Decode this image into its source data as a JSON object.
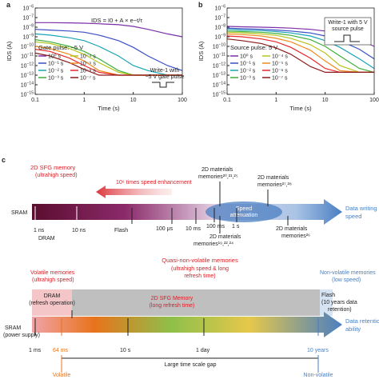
{
  "chart_data": [
    {
      "type": "line",
      "panel": "a",
      "xlabel": "Time (s)",
      "ylabel": "IDS (A)",
      "formula": "IDS = I0 + A × e−t/τ",
      "annotation": "Gate pulse: −5 V",
      "note": [
        "Write-1 with",
        "−5 V gate pulse"
      ],
      "xlog": true,
      "ylog": true,
      "legend": "lower left",
      "x": [
        0.1,
        0.2,
        0.5,
        1,
        2,
        5,
        10,
        20,
        50,
        100
      ],
      "xlim": [
        0.1,
        100
      ],
      "xticks": [
        0.1,
        1,
        10,
        100
      ],
      "ylim": [
        1e-15,
        1e-06
      ],
      "yticks": [
        {
          "value": 1e-15,
          "label": "10−15"
        },
        {
          "value": 1e-14,
          "label": "10−14"
        },
        {
          "value": 1e-13,
          "label": "10−13"
        },
        {
          "value": 1e-12,
          "label": "10−12"
        },
        {
          "value": 1e-11,
          "label": "10−11"
        },
        {
          "value": 1e-10,
          "label": "10−10"
        },
        {
          "value": 1e-09,
          "label": "10−9"
        },
        {
          "value": 1e-08,
          "label": "10−8"
        },
        {
          "value": 1e-07,
          "label": "10−7"
        },
        {
          "value": 1e-06,
          "label": "10−6"
        }
      ],
      "series": [
        {
          "name": "10⁰ s",
          "color": "#7b2fa8",
          "values": [
            3e-08,
            3e-08,
            2.8e-08,
            2.6e-08,
            2.3e-08,
            1.8e-08,
            1.2e-08,
            6e-09,
            2e-09,
            1e-09
          ]
        },
        {
          "name": "10⁻¹ s",
          "color": "#3a4fc4",
          "values": [
            6e-09,
            5e-09,
            4e-09,
            3e-09,
            1.5e-09,
            4e-10,
            8e-11,
            1e-11,
            1e-12,
            3e-13
          ]
        },
        {
          "name": "10⁻² s",
          "color": "#1aa3b8",
          "values": [
            2e-09,
            1.5e-09,
            8e-10,
            4e-10,
            1e-10,
            1e-11,
            1e-12,
            3e-13,
            1e-13,
            1e-13
          ]
        },
        {
          "name": "10⁻³ s",
          "color": "#3cae3c",
          "values": [
            5e-10,
            3e-10,
            1e-10,
            3e-11,
            5e-12,
            3e-13,
            1e-13,
            1e-13,
            1e-13,
            1e-13
          ]
        },
        {
          "name": "10⁻⁴ s",
          "color": "#b5c51a",
          "values": [
            3e-10,
            2e-10,
            6e-11,
            1.5e-11,
            2e-12,
            2e-13,
            1e-13,
            1e-13,
            1e-13,
            1e-13
          ]
        },
        {
          "name": "10⁻⁵ s",
          "color": "#f08a1c",
          "values": [
            1e-10,
            6e-11,
            1.5e-11,
            3e-12,
            3e-13,
            1e-13,
            1e-13,
            1e-13,
            1e-13,
            1e-13
          ]
        },
        {
          "name": "10⁻⁶ s",
          "color": "#e8282a",
          "values": [
            5e-11,
            3e-11,
            6e-12,
            1e-12,
            2e-13,
            1e-13,
            1e-13,
            1e-13,
            1e-13,
            1e-13
          ]
        },
        {
          "name": "10⁻⁷ s",
          "color": "#8b1a1a",
          "values": [
            2e-11,
            1e-11,
            2e-12,
            4e-13,
            1e-13,
            1e-13,
            1e-13,
            1e-13,
            1e-13,
            1e-13
          ]
        }
      ]
    },
    {
      "type": "line",
      "panel": "b",
      "xlabel": "Time (s)",
      "ylabel": "IDS (A)",
      "annotation": "Source pulse: 5 V",
      "note": [
        "Write-1 with 5 V",
        "source pulse"
      ],
      "xlog": true,
      "ylog": true,
      "legend": "lower left",
      "x": [
        0.1,
        0.2,
        0.5,
        1,
        2,
        5,
        10,
        20,
        50,
        100
      ],
      "xlim": [
        0.1,
        100
      ],
      "xticks": [
        0.1,
        1,
        10,
        100
      ],
      "ylim": [
        1e-15,
        1e-06
      ],
      "yticks": [
        {
          "value": 1e-15,
          "label": "10−15"
        },
        {
          "value": 1e-14,
          "label": "10−14"
        },
        {
          "value": 1e-13,
          "label": "10−13"
        },
        {
          "value": 1e-12,
          "label": "10−12"
        },
        {
          "value": 1e-11,
          "label": "10−11"
        },
        {
          "value": 1e-10,
          "label": "10−10"
        },
        {
          "value": 1e-09,
          "label": "10−9"
        },
        {
          "value": 1e-08,
          "label": "10−8"
        },
        {
          "value": 1e-07,
          "label": "10−7"
        },
        {
          "value": 1e-06,
          "label": "10−6"
        }
      ],
      "series": [
        {
          "name": "10⁰ s",
          "color": "#7b2fa8",
          "values": [
            1.2e-08,
            1.1e-08,
            1e-08,
            9e-09,
            8e-09,
            6e-09,
            4e-09,
            2e-09,
            5e-10,
            1e-10
          ]
        },
        {
          "name": "10⁻¹ s",
          "color": "#3a4fc4",
          "values": [
            8e-09,
            7e-09,
            6e-09,
            5e-09,
            4e-09,
            2.5e-09,
            1.2e-09,
            4e-10,
            5e-11,
            5e-12
          ]
        },
        {
          "name": "10⁻² s",
          "color": "#1aa3b8",
          "values": [
            6e-09,
            5e-09,
            4.5e-09,
            3.5e-09,
            2.5e-09,
            1.2e-09,
            4e-10,
            8e-11,
            5e-12,
            5e-13
          ]
        },
        {
          "name": "10⁻³ s",
          "color": "#3cae3c",
          "values": [
            4e-09,
            3.5e-09,
            3e-09,
            2.2e-09,
            1.4e-09,
            5e-10,
            1e-10,
            1e-11,
            5e-13,
            2e-13
          ]
        },
        {
          "name": "10⁻⁴ s",
          "color": "#b5c51a",
          "values": [
            3e-09,
            2.6e-09,
            2e-09,
            1.4e-09,
            7e-10,
            1.5e-10,
            2e-11,
            1e-12,
            2e-13,
            2e-13
          ]
        },
        {
          "name": "10⁻⁵ s",
          "color": "#f08a1c",
          "values": [
            2e-09,
            1.7e-09,
            1.2e-09,
            7e-10,
            3e-10,
            4e-11,
            3e-12,
            3e-13,
            2e-13,
            2e-13
          ]
        },
        {
          "name": "10⁻⁶ s",
          "color": "#e8282a",
          "values": [
            1.2e-09,
            1e-09,
            6e-10,
            3e-10,
            8e-11,
            6e-12,
            5e-13,
            2e-13,
            2e-13,
            2e-13
          ]
        },
        {
          "name": "10⁻⁷ s",
          "color": "#8b1a1a",
          "values": [
            6e-10,
            4e-10,
            2e-10,
            7e-11,
            1.5e-11,
            8e-13,
            2e-13,
            2e-13,
            2e-13,
            2e-13
          ]
        }
      ]
    }
  ],
  "diagram": {
    "panel": "c",
    "writing": {
      "sfg": "2D SFG memory",
      "sfg_sub": "(ultrahigh speed)",
      "enhancement": "10⁶ times speed enhancement",
      "m1": [
        "2D materials",
        "memories²⁰,²¹,²⁵"
      ],
      "m2": [
        "2D materials",
        "memories²⁷,²⁸"
      ],
      "m3": [
        "2D materials",
        "memories¹⁹,²²,²⁴"
      ],
      "m4": [
        "2D materials",
        "memories²⁶"
      ],
      "attenuation": [
        "Speed",
        "attenuation"
      ],
      "axis": [
        "Data writing",
        "speed"
      ],
      "sram": "SRAM",
      "dram": "DRAM",
      "flash": "Flash",
      "ticks": [
        "1 ns",
        "10 ns",
        "100 μs",
        "10 ms",
        "100 ms",
        "1 s"
      ]
    },
    "retention": {
      "volatile": "Volatile memories",
      "volatile_sub": "(ultrahigh speed)",
      "quasi": "Quasi-non-volatile memories",
      "quasi_sub": [
        "(ultrahigh speed & long",
        "refresh time)"
      ],
      "nonvolatile": "Non-volatile memories",
      "nonvolatile_sub": "(low speed)",
      "dram": "DRAM",
      "dram_sub": "(refresh operation)",
      "sfg": "2D SFG Memory",
      "sfg_sub": "(long refresh time)",
      "flash": "Flash",
      "flash_sub": "(10 years data",
      "flash_sub2": "retention)",
      "sram": "SRAM",
      "sram_sub": "(power supply)",
      "ticks": [
        "1 ms",
        "64 ms",
        "10 s",
        "1 day",
        "10 years"
      ],
      "axis": [
        "Data retention",
        "ability"
      ],
      "gap": "Large time scale gap",
      "left": "Volatile",
      "right": "Non-volatile"
    }
  }
}
